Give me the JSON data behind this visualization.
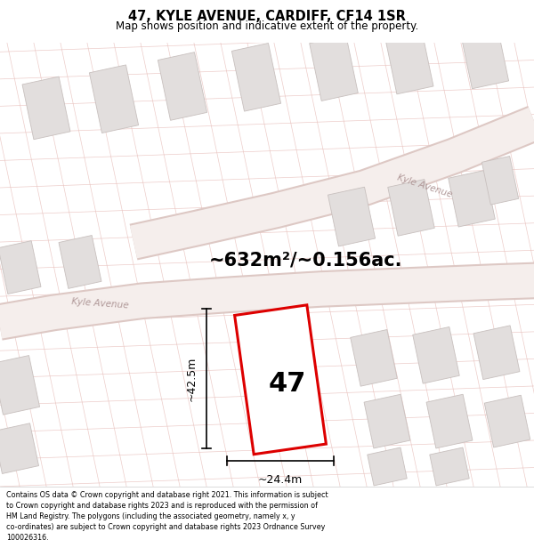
{
  "title": "47, KYLE AVENUE, CARDIFF, CF14 1SR",
  "subtitle": "Map shows position and indicative extent of the property.",
  "area_text": "~632m²/~0.156ac.",
  "number_label": "47",
  "width_label": "~24.4m",
  "height_label": "~42.5m",
  "footer_text": "Contains OS data © Crown copyright and database right 2021. This information is subject to Crown copyright and database rights 2023 and is reproduced with the permission of HM Land Registry. The polygons (including the associated geometry, namely x, y co-ordinates) are subject to Crown copyright and database rights 2023 Ordnance Survey 100026316.",
  "bg_color": "#ffffff",
  "map_bg": "#f8f5f3",
  "plot_color": "#dd0000",
  "road_fill": "#f5eeec",
  "road_edge": "#ddc8c4",
  "building_face": "#e2dedd",
  "building_edge": "#c8c0be",
  "grid_line_color": "#e8c0bc",
  "road_label_color": "#b09898",
  "figsize": [
    6.0,
    6.25
  ],
  "dpi": 100,
  "title_fontsize": 10.5,
  "subtitle_fontsize": 8.5,
  "area_fontsize": 15,
  "number_fontsize": 22,
  "dim_fontsize": 9,
  "footer_fontsize": 5.8
}
